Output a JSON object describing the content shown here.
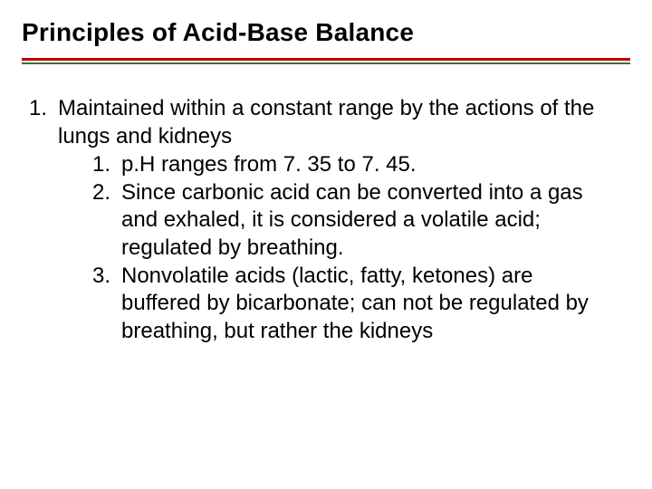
{
  "title": "Principles of Acid-Base Balance",
  "rule_color_top": "#c00000",
  "rule_color_bottom": "#3b6f3b",
  "list": {
    "item1": {
      "num": "1.",
      "text": "Maintained within a constant range by the actions of the lungs and kidneys",
      "sub1": {
        "num": "1.",
        "text": "p.H ranges from 7. 35 to 7. 45."
      },
      "sub2": {
        "num": "2.",
        "text": "Since carbonic acid can be converted into a gas and exhaled, it is considered a volatile acid; regulated by breathing."
      },
      "sub3": {
        "num": "3.",
        "text": "Nonvolatile acids (lactic, fatty, ketones) are buffered by bicarbonate; can not be regulated by breathing, but rather the kidneys"
      }
    }
  }
}
